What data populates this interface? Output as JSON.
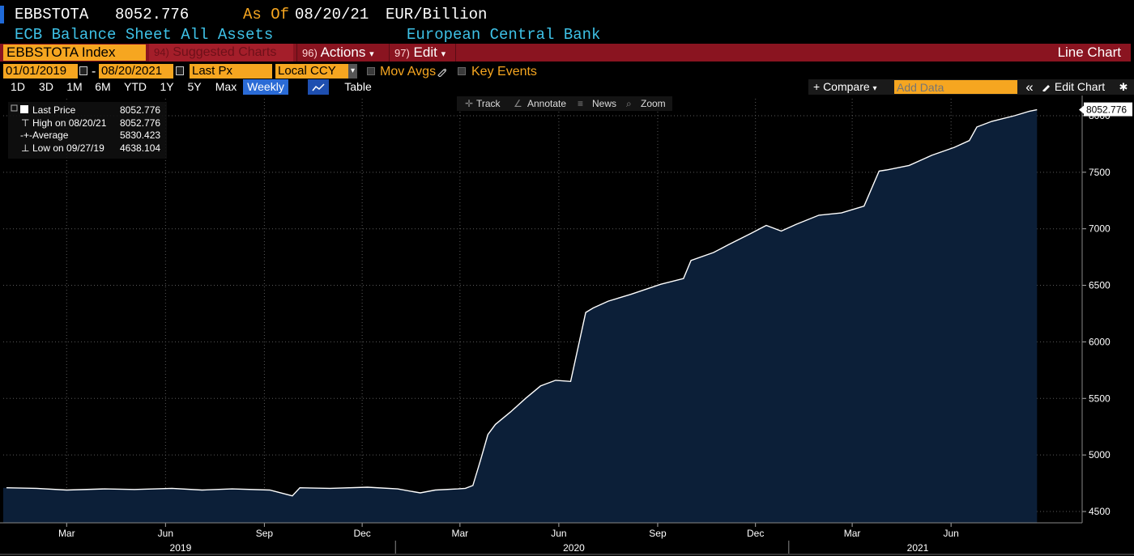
{
  "header": {
    "ticker": "EBBSTOTA",
    "last_value": "8052.776",
    "as_of_label": "As Of",
    "as_of_date": "08/20/21",
    "units": "EUR/Billion",
    "description": "ECB Balance Sheet All Assets",
    "source": "European Central Bank"
  },
  "command_bar": {
    "security": "EBBSTOTA Index",
    "suggested_num": "94)",
    "suggested_label": "Suggested Charts",
    "actions_num": "96)",
    "actions_label": "Actions",
    "edit_num": "97)",
    "edit_label": "Edit",
    "dropdown_glyph": "▾",
    "chart_type": "Line Chart"
  },
  "date_row": {
    "start_date": "01/01/2019",
    "separator": "-",
    "end_date": "08/20/2021",
    "field": "Last Px",
    "currency": "Local CCY",
    "mov_avgs": "Mov Avgs",
    "key_events": "Key Events"
  },
  "periods": [
    "1D",
    "3D",
    "1M",
    "6M",
    "YTD",
    "1Y",
    "5Y",
    "Max",
    "Weekly"
  ],
  "active_period": "Weekly",
  "table_label": "Table",
  "toolbar": {
    "compare": "+ Compare",
    "compare_caret": "▾",
    "add_data_placeholder": "Add Data",
    "collapse": "«",
    "edit_chart": "Edit Chart",
    "settings_glyph": "✱"
  },
  "chart_tools": [
    "Track",
    "Annotate",
    "News",
    "Zoom"
  ],
  "legend": [
    {
      "label": "Last Price",
      "value": "8052.776"
    },
    {
      "label": "High on 08/20/21",
      "value": "8052.776"
    },
    {
      "label": "Average",
      "value": "5830.423"
    },
    {
      "label": "Low on 09/27/19",
      "value": "4638.104"
    }
  ],
  "colors": {
    "background": "#000000",
    "area_fill": "#0c1f38",
    "line": "#ffffff",
    "accent_orange": "#f6a620",
    "command_red": "#8a1420",
    "header_cyan": "#3ec1e6",
    "active_blue": "#2a6bd6"
  },
  "chart_data": {
    "type": "area",
    "title": "",
    "xlabel": "",
    "ylabel": "",
    "ylim": [
      4400,
      8150
    ],
    "yticks": [
      4500,
      5000,
      5500,
      6000,
      6500,
      7000,
      7500,
      8000
    ],
    "last_value_label": "8052.776",
    "x_month_ticks": [
      {
        "date": "2019-03-01",
        "label": "Mar"
      },
      {
        "date": "2019-06-01",
        "label": "Jun"
      },
      {
        "date": "2019-09-01",
        "label": "Sep"
      },
      {
        "date": "2019-12-01",
        "label": "Dec"
      },
      {
        "date": "2020-03-01",
        "label": "Mar"
      },
      {
        "date": "2020-06-01",
        "label": "Jun"
      },
      {
        "date": "2020-09-01",
        "label": "Sep"
      },
      {
        "date": "2020-12-01",
        "label": "Dec"
      },
      {
        "date": "2021-03-01",
        "label": "Mar"
      },
      {
        "date": "2021-06-01",
        "label": "Jun"
      }
    ],
    "x_year_labels": [
      {
        "date": "2019-06-15",
        "label": "2019"
      },
      {
        "date": "2020-06-15",
        "label": "2020"
      },
      {
        "date": "2021-05-01",
        "label": "2021"
      }
    ],
    "x_year_dividers": [
      "2020-01-01",
      "2021-01-01"
    ],
    "xlim": [
      "2019-01-01",
      "2021-10-01"
    ],
    "grid": true,
    "series": [
      {
        "x": [
          "2019-01-04",
          "2019-02-01",
          "2019-03-01",
          "2019-04-05",
          "2019-05-03",
          "2019-06-07",
          "2019-07-05",
          "2019-08-02",
          "2019-09-06",
          "2019-09-27",
          "2019-10-04",
          "2019-11-01",
          "2019-12-06",
          "2020-01-03",
          "2020-01-24",
          "2020-02-07",
          "2020-02-28",
          "2020-03-06",
          "2020-03-13",
          "2020-03-20",
          "2020-03-27",
          "2020-04-03",
          "2020-04-17",
          "2020-05-01",
          "2020-05-15",
          "2020-05-29",
          "2020-06-12",
          "2020-06-26",
          "2020-07-03",
          "2020-07-17",
          "2020-08-07",
          "2020-09-04",
          "2020-09-25",
          "2020-10-02",
          "2020-10-23",
          "2020-11-06",
          "2020-11-27",
          "2020-12-11",
          "2020-12-25",
          "2021-01-08",
          "2021-01-29",
          "2021-02-19",
          "2021-03-12",
          "2021-03-26",
          "2021-04-02",
          "2021-04-23",
          "2021-05-14",
          "2021-06-04",
          "2021-06-18",
          "2021-06-25",
          "2021-07-09",
          "2021-07-30",
          "2021-08-13",
          "2021-08-20"
        ],
        "y": [
          4710,
          4705,
          4690,
          4700,
          4695,
          4705,
          4690,
          4700,
          4690,
          4638.104,
          4710,
          4705,
          4715,
          4700,
          4665,
          4690,
          4700,
          4705,
          4730,
          4950,
          5180,
          5270,
          5380,
          5500,
          5610,
          5660,
          5650,
          6260,
          6300,
          6360,
          6420,
          6510,
          6560,
          6720,
          6790,
          6860,
          6960,
          7030,
          6980,
          7040,
          7120,
          7140,
          7200,
          7510,
          7520,
          7560,
          7650,
          7720,
          7780,
          7900,
          7950,
          8000,
          8040,
          8052.776
        ]
      }
    ]
  }
}
